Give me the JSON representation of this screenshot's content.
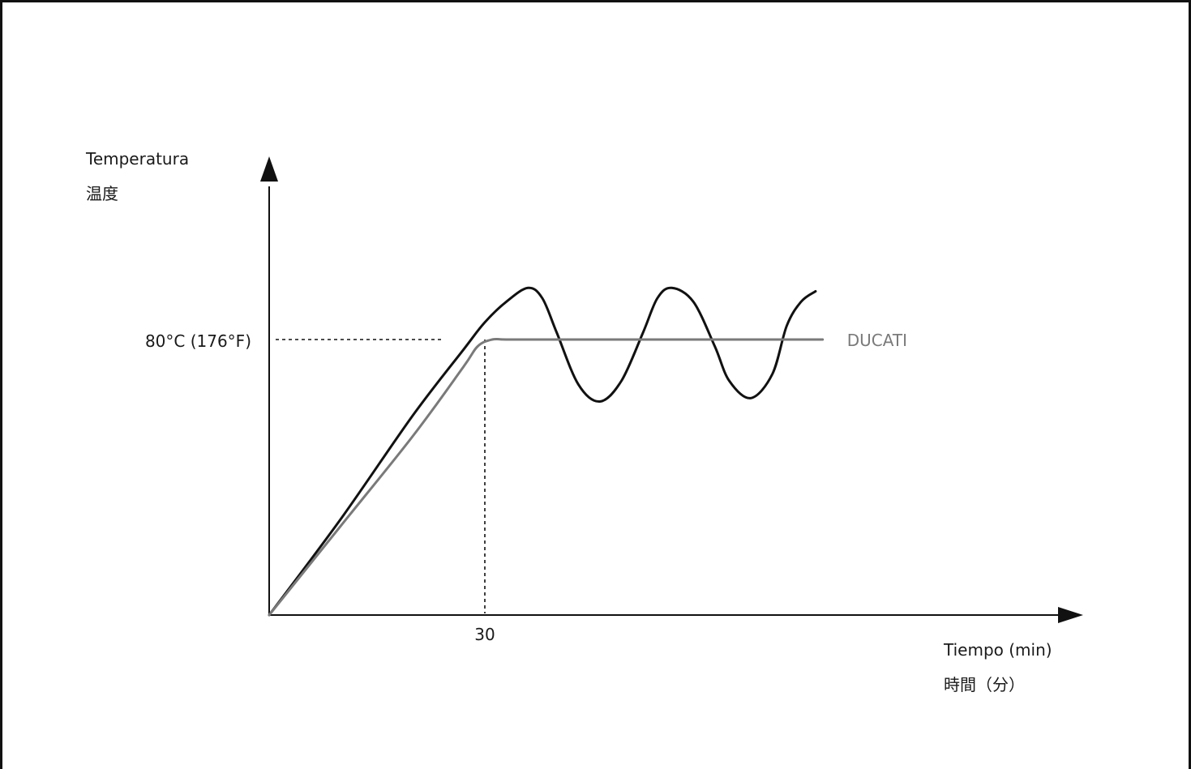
{
  "chart_data": {
    "type": "line",
    "title": "",
    "ylabel": [
      "Temperatura",
      "温度"
    ],
    "xlabel": [
      "Tiempo (min)",
      "時間（分）"
    ],
    "x_unit": "min",
    "xlim": [
      0,
      75
    ],
    "ylim": [
      0,
      100
    ],
    "axis_values_shown": false,
    "grid": false,
    "reference_lines": {
      "y": {
        "value": 80,
        "label": "80°C (176°F)"
      },
      "x": {
        "value": 30,
        "label": "30"
      }
    },
    "series": [
      {
        "name": "",
        "color": "#111111",
        "x": [
          0,
          10,
          20,
          27,
          30,
          33,
          36,
          38,
          40,
          43,
          46,
          49,
          52,
          54,
          56,
          59,
          62,
          64,
          67,
          70,
          72,
          74,
          76
        ],
        "y": [
          0,
          28,
          58,
          77,
          85,
          91,
          95,
          92,
          82,
          67,
          62,
          68,
          82,
          92,
          95,
          91,
          78,
          68,
          63,
          70,
          84,
          91,
          94
        ]
      },
      {
        "name": "DUCATI",
        "color": "#7a7a7a",
        "x": [
          0,
          10,
          20,
          27,
          29,
          31,
          33,
          40,
          50,
          60,
          70,
          77
        ],
        "y": [
          0,
          26,
          52,
          72,
          78,
          80,
          80,
          80,
          80,
          80,
          80,
          80
        ]
      }
    ]
  }
}
